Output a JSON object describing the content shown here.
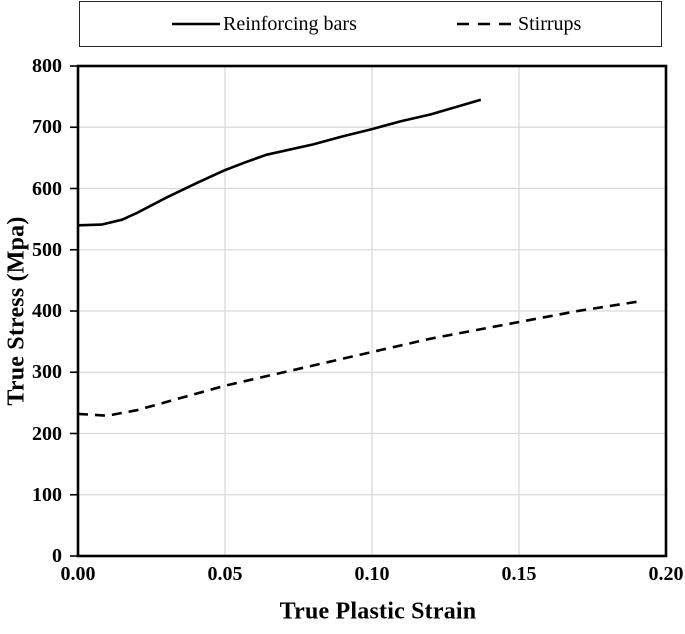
{
  "legend": {
    "items": [
      {
        "label": "Reinforcing bars",
        "line_style": "solid"
      },
      {
        "label": "Stirrups",
        "line_style": "dashed"
      }
    ]
  },
  "chart_data": {
    "type": "line",
    "title": "",
    "xlabel": "True Plastic Strain",
    "ylabel": "True Stress (Mpa)",
    "xlim": [
      0,
      0.2
    ],
    "ylim": [
      0,
      800
    ],
    "grid": true,
    "legend_position": "top-outside",
    "x_ticks": [
      {
        "value": 0,
        "label": "0.00"
      },
      {
        "value": 0.05,
        "label": "0.05"
      },
      {
        "value": 0.1,
        "label": "0.10"
      },
      {
        "value": 0.15,
        "label": "0.15"
      },
      {
        "value": 0.2,
        "label": "0.20"
      }
    ],
    "y_ticks": [
      {
        "value": 0,
        "label": "0"
      },
      {
        "value": 100,
        "label": "100"
      },
      {
        "value": 200,
        "label": "200"
      },
      {
        "value": 300,
        "label": "300"
      },
      {
        "value": 400,
        "label": "400"
      },
      {
        "value": 500,
        "label": "500"
      },
      {
        "value": 600,
        "label": "600"
      },
      {
        "value": 700,
        "label": "700"
      },
      {
        "value": 800,
        "label": "800"
      }
    ],
    "series": [
      {
        "name": "Reinforcing bars",
        "style": "solid",
        "color": "#000000",
        "points": [
          [
            0,
            540
          ],
          [
            0.008,
            541
          ],
          [
            0.015,
            549
          ],
          [
            0.02,
            560
          ],
          [
            0.03,
            585
          ],
          [
            0.04,
            608
          ],
          [
            0.05,
            630
          ],
          [
            0.057,
            643
          ],
          [
            0.064,
            655
          ],
          [
            0.08,
            672
          ],
          [
            0.09,
            685
          ],
          [
            0.1,
            697
          ],
          [
            0.11,
            710
          ],
          [
            0.12,
            721
          ],
          [
            0.137,
            745
          ]
        ]
      },
      {
        "name": "Stirrups",
        "style": "dashed",
        "color": "#000000",
        "points": [
          [
            0,
            232
          ],
          [
            0.01,
            229
          ],
          [
            0.02,
            238
          ],
          [
            0.05,
            278
          ],
          [
            0.08,
            311
          ],
          [
            0.1,
            333
          ],
          [
            0.12,
            355
          ],
          [
            0.15,
            382
          ],
          [
            0.17,
            400
          ],
          [
            0.19,
            415
          ]
        ]
      }
    ],
    "colors": {
      "grid": "#d9d9d9",
      "axis": "#000000",
      "text": "#000000"
    }
  }
}
